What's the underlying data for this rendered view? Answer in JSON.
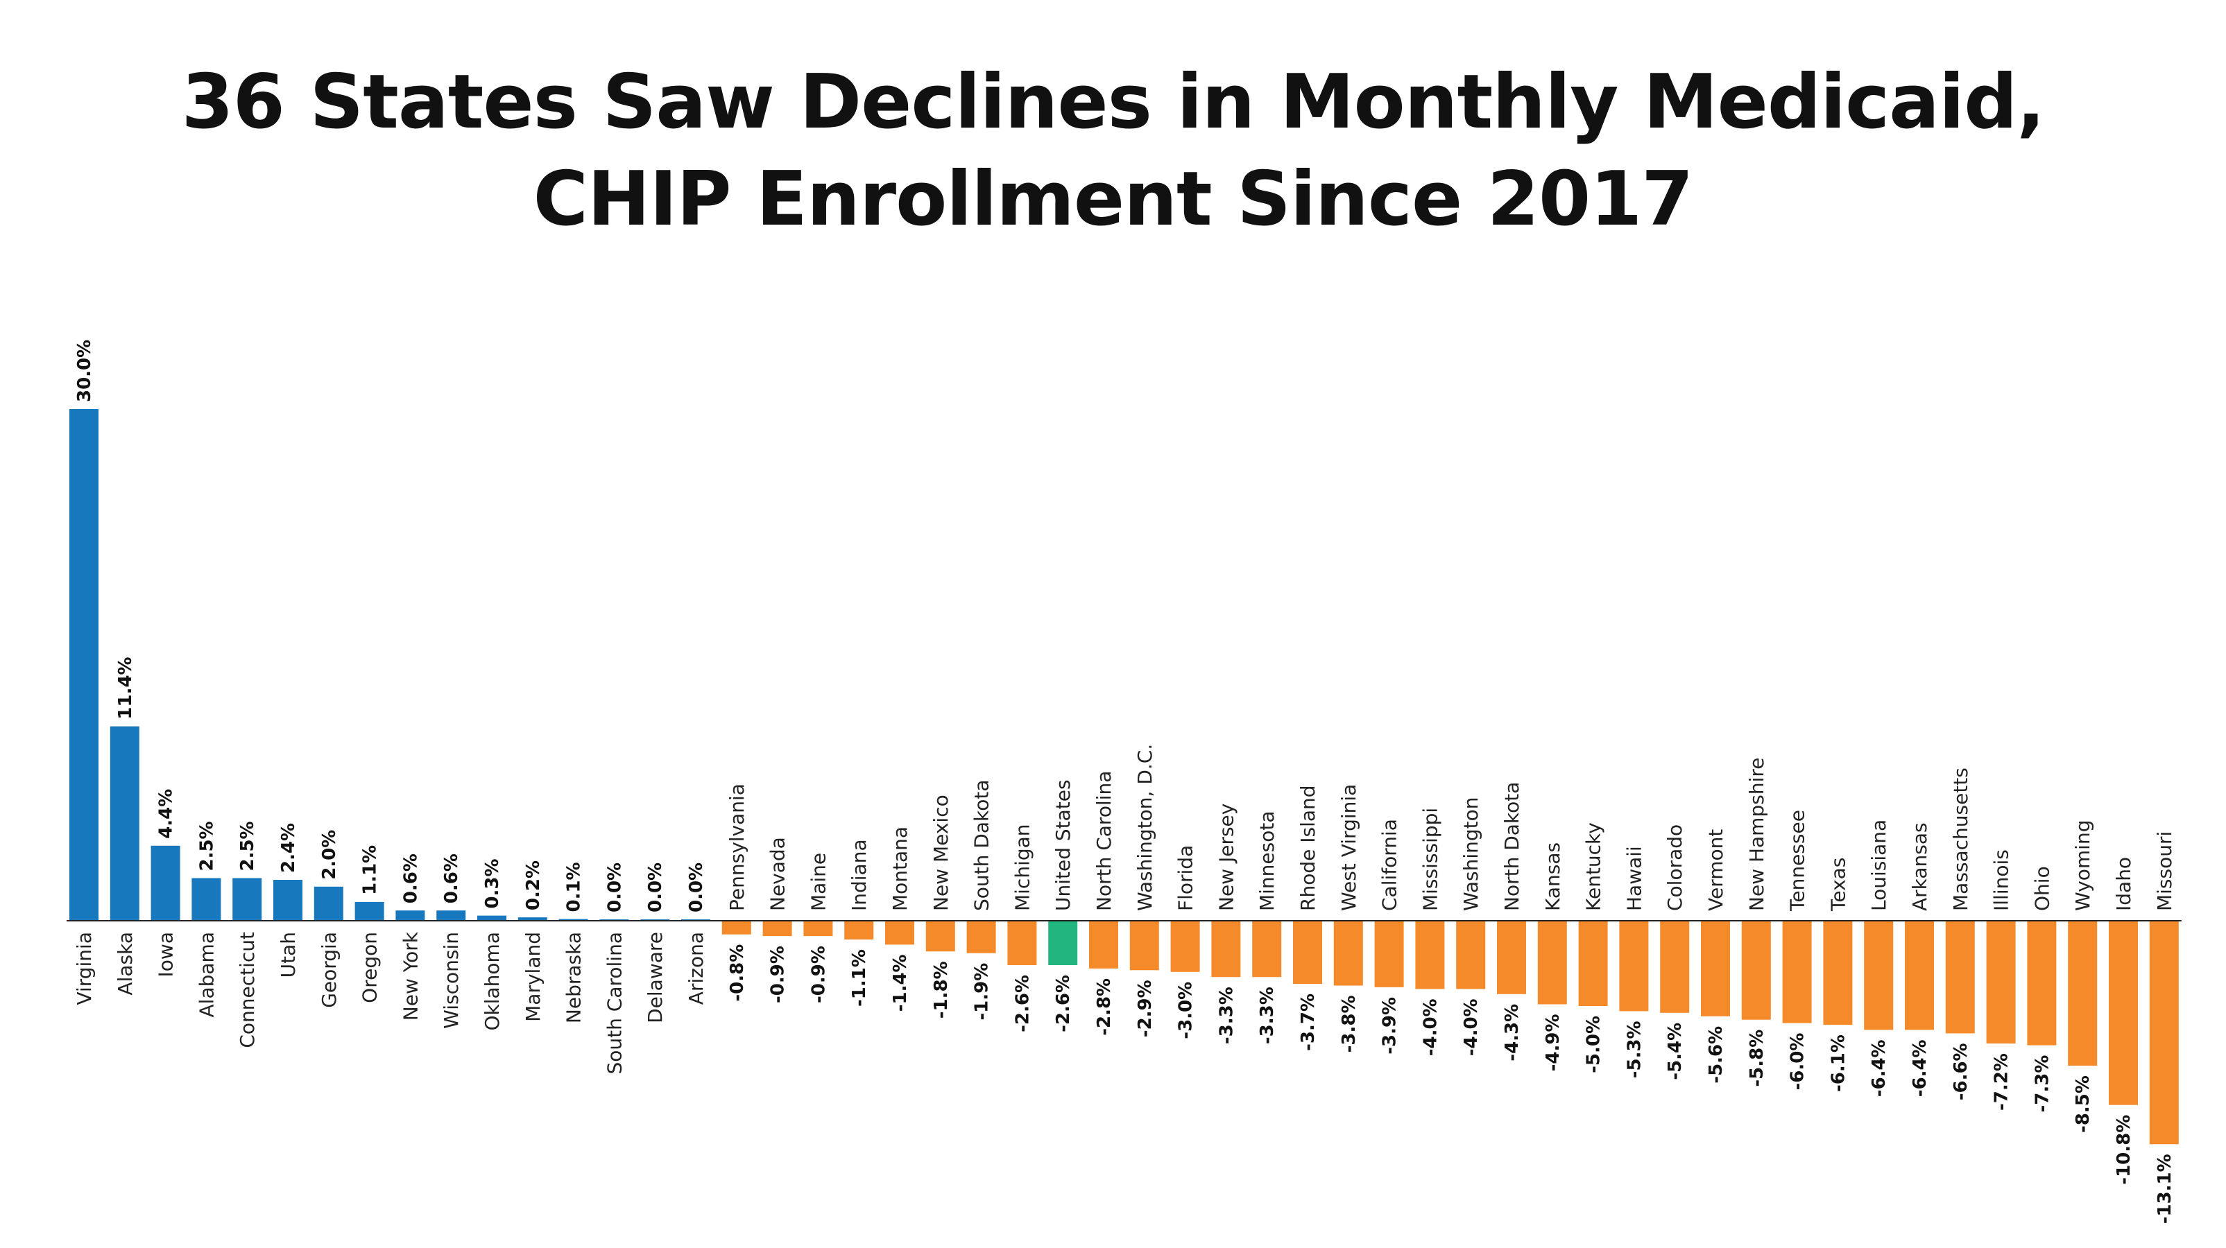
{
  "chart_data": {
    "type": "bar",
    "title": "36 States Saw Declines in Monthly Medicaid, CHIP Enrollment Since 2017",
    "title_lines": [
      "36 States Saw Declines in Monthly Medicaid,",
      "CHIP Enrollment Since 2017"
    ],
    "categories": [
      "Virginia",
      "Alaska",
      "Iowa",
      "Alabama",
      "Connecticut",
      "Utah",
      "Georgia",
      "Oregon",
      "New York",
      "Wisconsin",
      "Oklahoma",
      "Maryland",
      "Nebraska",
      "South Carolina",
      "Delaware",
      "Arizona",
      "Pennsylvania",
      "Nevada",
      "Maine",
      "Indiana",
      "Montana",
      "New Mexico",
      "South Dakota",
      "Michigan",
      "United States",
      "North Carolina",
      "Washington, D.C.",
      "Florida",
      "New Jersey",
      "Minnesota",
      "Rhode Island",
      "West Virginia",
      "California",
      "Mississippi",
      "Washington",
      "North Dakota",
      "Kansas",
      "Kentucky",
      "Hawaii",
      "Colorado",
      "Vermont",
      "New Hampshire",
      "Tennessee",
      "Texas",
      "Louisiana",
      "Arkansas",
      "Massachusetts",
      "Illinois",
      "Ohio",
      "Wyoming",
      "Idaho",
      "Missouri"
    ],
    "values": [
      30.0,
      11.4,
      4.4,
      2.5,
      2.5,
      2.4,
      2.0,
      1.1,
      0.6,
      0.6,
      0.3,
      0.2,
      0.1,
      0.0,
      0.0,
      0.0,
      -0.8,
      -0.9,
      -0.9,
      -1.1,
      -1.4,
      -1.8,
      -1.9,
      -2.6,
      -2.6,
      -2.8,
      -2.9,
      -3.0,
      -3.3,
      -3.3,
      -3.7,
      -3.8,
      -3.9,
      -4.0,
      -4.0,
      -4.3,
      -4.9,
      -5.0,
      -5.3,
      -5.4,
      -5.6,
      -5.8,
      -6.0,
      -6.1,
      -6.4,
      -6.4,
      -6.6,
      -7.2,
      -7.3,
      -8.5,
      -10.8,
      -13.1
    ],
    "value_labels": [
      "30.0%",
      "11.4%",
      "4.4%",
      "2.5%",
      "2.5%",
      "2.4%",
      "2.0%",
      "1.1%",
      "0.6%",
      "0.6%",
      "0.3%",
      "0.2%",
      "0.1%",
      "0.0%",
      "0.0%",
      "0.0%",
      "-0.8%",
      "-0.9%",
      "-0.9%",
      "-1.1%",
      "-1.4%",
      "-1.8%",
      "-1.9%",
      "-2.6%",
      "-2.6%",
      "-2.8%",
      "-2.9%",
      "-3.0%",
      "-3.3%",
      "-3.3%",
      "-3.7%",
      "-3.8%",
      "-3.9%",
      "-4.0%",
      "-4.0%",
      "-4.3%",
      "-4.9%",
      "-5.0%",
      "-5.3%",
      "-5.4%",
      "-5.6%",
      "-5.8%",
      "-6.0%",
      "-6.1%",
      "-6.4%",
      "-6.4%",
      "-6.6%",
      "-7.2%",
      "-7.3%",
      "-8.5%",
      "-10.8%",
      "-13.1%"
    ],
    "highlight_category": "United States",
    "colors": {
      "positive": "#1878be",
      "negative": "#f58a2a",
      "highlight": "#22b57f",
      "zero_line": "#222222"
    },
    "ylim": [
      -13.1,
      30.0
    ],
    "xlabel": "",
    "ylabel": "",
    "grid": false,
    "legend": "none"
  }
}
